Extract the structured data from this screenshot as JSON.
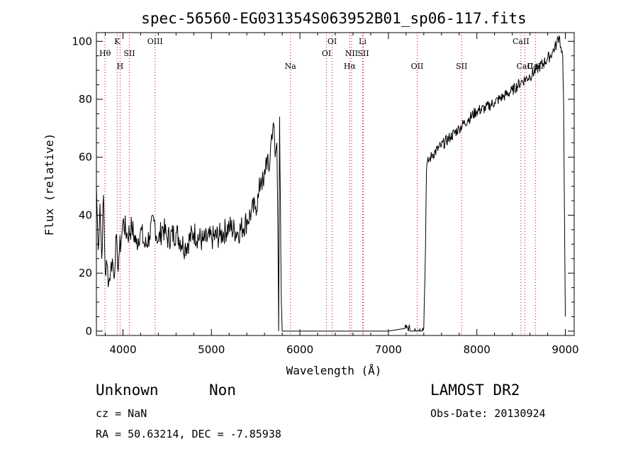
{
  "chart_data": {
    "type": "line",
    "title": "spec-56560-EG031354S063952B01_sp06-117.fits",
    "xlabel": "Wavelength (Å)",
    "ylabel": "Flux (relative)",
    "xlim": [
      3700,
      9100
    ],
    "ylim": [
      -1.5,
      103
    ],
    "xticks": [
      4000,
      5000,
      6000,
      7000,
      8000,
      9000
    ],
    "yticks": [
      0,
      20,
      40,
      60,
      80,
      100
    ],
    "grid": false,
    "line_color": "#000000",
    "marker_color": "#cc0000",
    "series": [
      {
        "x": [
          3700,
          3720,
          3740,
          3760,
          3780,
          3800,
          3820,
          3840,
          3860,
          3880,
          3900,
          3920,
          3940,
          3960,
          3980,
          4000,
          4050,
          4100,
          4150,
          4200,
          4250,
          4300,
          4350,
          4400,
          4450,
          4500,
          4600,
          4700,
          4800,
          4900,
          5000,
          5100,
          5200,
          5300,
          5400,
          5450,
          5500,
          5530,
          5560,
          5590,
          5620,
          5650,
          5680,
          5700,
          5720,
          5740,
          5750,
          5755,
          5760,
          5770,
          5780,
          5790,
          5800,
          6000,
          6500,
          7000,
          7200,
          7250,
          7300,
          7350,
          7400,
          7420,
          7430,
          7440,
          7460,
          7500,
          7600,
          7700,
          7800,
          7900,
          8000,
          8100,
          8200,
          8300,
          8400,
          8500,
          8600,
          8700,
          8800,
          8850,
          8900,
          8930,
          8950,
          8970,
          8980,
          8990,
          9000
        ],
        "y": [
          50,
          28,
          44,
          25,
          47,
          20,
          23,
          17,
          21,
          25,
          18,
          33,
          22,
          28,
          31,
          38,
          33,
          36,
          30,
          35,
          29,
          33,
          38,
          31,
          36,
          32,
          34,
          29,
          34,
          31,
          32,
          33,
          36,
          34,
          38,
          41,
          43,
          46,
          53,
          50,
          60,
          55,
          68,
          72,
          60,
          65,
          38,
          20,
          0,
          74,
          45,
          10,
          0,
          0,
          0,
          0,
          1,
          0,
          1,
          0,
          1,
          30,
          55,
          58,
          59,
          61,
          64,
          67,
          70,
          73,
          76,
          77,
          79,
          81,
          83,
          86,
          88,
          91,
          94,
          96,
          99,
          102,
          98,
          95,
          80,
          40,
          5
        ]
      }
    ],
    "lines": [
      {
        "label": "Hθ",
        "x": 3797,
        "row": 2
      },
      {
        "label": "K",
        "x": 3934,
        "row": 1
      },
      {
        "label": "H",
        "x": 3968,
        "row": 3
      },
      {
        "label": "SII",
        "x": 4072,
        "row": 2
      },
      {
        "label": "OIII",
        "x": 4363,
        "row": 1
      },
      {
        "label": "Na",
        "x": 5893,
        "row": 3
      },
      {
        "label": "OI",
        "x": 6300,
        "row": 2
      },
      {
        "label": "OI",
        "x": 6364,
        "row": 1
      },
      {
        "label": "Hα",
        "x": 6563,
        "row": 3
      },
      {
        "label": "NII",
        "x": 6584,
        "row": 2
      },
      {
        "label": "Li",
        "x": 6708,
        "row": 1
      },
      {
        "label": "SII",
        "x": 6717,
        "row": 2
      },
      {
        "label": "OII",
        "x": 7325,
        "row": 3
      },
      {
        "label": "SII",
        "x": 7828,
        "row": 3
      },
      {
        "label": "CaII",
        "x": 8498,
        "row": 1
      },
      {
        "label": "CaII",
        "x": 8542,
        "row": 3
      },
      {
        "label": "CaII",
        "x": 8662,
        "row": 3
      }
    ]
  },
  "info": {
    "class": "Unknown",
    "subclass": "Non",
    "cz": "cz = NaN",
    "radec": "RA =  50.63214, DEC =  -7.85938",
    "survey": "LAMOST DR2",
    "obsdate": "Obs-Date: 20130924"
  }
}
